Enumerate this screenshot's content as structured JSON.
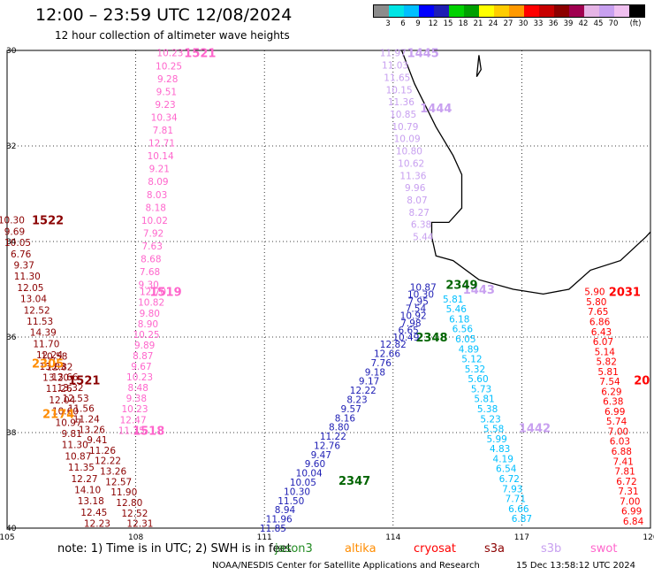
{
  "title": "12:00 – 23:59 UTC 12/08/2024",
  "subtitle": "12 hour collection of altimeter wave heights",
  "colorbar": {
    "colors": [
      "#8c8c8c",
      "#00e5e5",
      "#00bfff",
      "#0000ff",
      "#1e1eb4",
      "#00d200",
      "#00a000",
      "#ffff00",
      "#ffcc00",
      "#ff9900",
      "#ff0000",
      "#c80000",
      "#8c0000",
      "#a00050",
      "#e6b4e6",
      "#c8a0f0",
      "#f0c0f0",
      "#000000"
    ],
    "tick_labels": [
      "3",
      "6",
      "9",
      "12",
      "15",
      "18",
      "21",
      "24",
      "27",
      "30",
      "33",
      "36",
      "39",
      "42",
      "45",
      "70",
      "(ft)"
    ]
  },
  "map": {
    "lon_range": [
      105,
      120
    ],
    "lat_range": [
      -40,
      -30
    ],
    "x_ticks": [
      "105",
      "108",
      "111",
      "114",
      "117",
      "120"
    ],
    "y_ticks": [
      "30",
      "32",
      "34",
      "36",
      "38",
      "40"
    ],
    "coast_color": "#000000",
    "tracks": [
      {
        "label": "1521",
        "color": "#ff66cc",
        "label_pos": [
          109.5,
          -30.05
        ],
        "start": [
          108.8,
          -30.05
        ],
        "end": [
          108.3,
          -34.9
        ],
        "values": [
          "10.23",
          "10.25",
          "9.28",
          "9.51",
          "9.23",
          "10.34",
          "7.81",
          "12.71",
          "10.14",
          "9.21",
          "8.09",
          "8.03",
          "8.18",
          "10.02",
          "7.92",
          "7.63",
          "8.68",
          "7.68",
          "9.30"
        ]
      },
      {
        "label": "1519",
        "color": "#ff66cc",
        "label_pos": [
          108.7,
          -35.05
        ],
        "start": [
          108.4,
          -35.05
        ],
        "end": [
          107.9,
          -37.95
        ],
        "values": [
          "12.70",
          "10.82",
          "9.80",
          "8.90",
          "10.25",
          "9.89",
          "8.87",
          "9.67",
          "10.23",
          "8.48",
          "9.38",
          "10.23",
          "12.47",
          "11.75"
        ]
      },
      {
        "label": "1518",
        "color": "#ff66cc",
        "label_pos": [
          108.3,
          -37.95
        ],
        "start": null,
        "end": null,
        "values": []
      },
      {
        "label": "1522",
        "color": "#8b0000",
        "label_pos": [
          105.95,
          -33.55
        ],
        "start": [
          105.1,
          -33.55
        ],
        "end": [
          107.1,
          -39.9
        ],
        "values": [
          "10.30",
          "9.69",
          "10.05",
          "6.76",
          "9.37",
          "11.30",
          "12.05",
          "13.04",
          "12.52",
          "11.53",
          "14.39",
          "11.70",
          "12.24",
          "13.03",
          "13.20",
          "11.26",
          "12.04",
          "10.60",
          "10.97",
          "9.81",
          "11.30",
          "10.87",
          "11.35",
          "12.27",
          "14.10",
          "13.18",
          "12.45",
          "12.23"
        ]
      },
      {
        "label": "1521",
        "color": "#8b0000",
        "label_pos": [
          106.8,
          -36.9
        ],
        "start": [
          106.1,
          -36.4
        ],
        "end": [
          108.1,
          -39.9
        ],
        "values": [
          "10.58",
          "12.82",
          "13.66",
          "13.32",
          "12.53",
          "11.56",
          "11.24",
          "13.26",
          "9.41",
          "11.26",
          "12.22",
          "13.26",
          "12.57",
          "11.90",
          "12.80",
          "12.52",
          "12.31"
        ]
      },
      {
        "label": "2305",
        "color": "#ff8c00",
        "label_pos": [
          105.95,
          -36.55
        ],
        "start": null,
        "end": null,
        "values": []
      },
      {
        "label": "2174",
        "color": "#ff8c00",
        "label_pos": [
          106.2,
          -37.6
        ],
        "start": null,
        "end": null,
        "values": []
      },
      {
        "label": "1445",
        "color": "#c8a0f0",
        "label_pos": [
          114.7,
          -30.05
        ],
        "start": [
          114.0,
          -30.05
        ],
        "end": [
          114.7,
          -33.9
        ],
        "values": [
          "11.97",
          "11.03",
          "11.65",
          "10.15",
          "11.36",
          "10.85",
          "10.79",
          "10.09",
          "10.80",
          "10.62",
          "11.36",
          "9.96",
          "8.07",
          "8.27",
          "6.38",
          "5.44"
        ]
      },
      {
        "label": "1444",
        "color": "#c8a0f0",
        "label_pos": [
          115.0,
          -31.2
        ],
        "start": null,
        "end": null,
        "values": []
      },
      {
        "label": "1443",
        "color": "#c8a0f0",
        "label_pos": [
          116.0,
          -35.0
        ],
        "start": null,
        "end": null,
        "values": []
      },
      {
        "label": "1442",
        "color": "#c8a0f0",
        "label_pos": [
          117.3,
          -37.9
        ],
        "start": null,
        "end": null,
        "values": []
      },
      {
        "label": "2349",
        "color": "#006400",
        "label_pos": [
          115.6,
          -34.9
        ],
        "start": null,
        "end": null,
        "values": []
      },
      {
        "label": "2348",
        "color": "#006400",
        "label_pos": [
          114.9,
          -36.0
        ],
        "start": null,
        "end": null,
        "values": []
      },
      {
        "label": "2347",
        "color": "#006400",
        "label_pos": [
          113.1,
          -39.0
        ],
        "start": null,
        "end": null,
        "values": []
      },
      {
        "label": "",
        "color": "#1e1eb4",
        "label_pos": null,
        "start": [
          114.7,
          -34.95
        ],
        "end": [
          114.3,
          -36.0
        ],
        "values": [
          "10.87",
          "10.30",
          "7.95",
          "7.54",
          "10.92",
          "7.98",
          "6.65",
          "10.49"
        ]
      },
      {
        "label": "",
        "color": "#00bfff",
        "label_pos": null,
        "start": [
          115.4,
          -35.2
        ],
        "end": [
          117.0,
          -39.8
        ],
        "values": [
          "5.81",
          "5.46",
          "6.18",
          "6.56",
          "6.05",
          "4.89",
          "5.12",
          "5.32",
          "5.60",
          "5.73",
          "5.81",
          "5.38",
          "5.23",
          "5.58",
          "5.99",
          "4.83",
          "4.19",
          "6.54",
          "6.72",
          "7.93",
          "7.71",
          "6.66",
          "6.87"
        ]
      },
      {
        "label": "",
        "color": "#1e1eb4",
        "label_pos": null,
        "start": [
          114.0,
          -36.15
        ],
        "end": [
          111.2,
          -40.0
        ],
        "values": [
          "12.82",
          "12.66",
          "7.76",
          "9.18",
          "9.17",
          "12.22",
          "8.23",
          "9.57",
          "8.16",
          "8.80",
          "11.22",
          "12.76",
          "9.47",
          "9.60",
          "10.04",
          "10.05",
          "10.30",
          "11.50",
          "8.94",
          "11.96",
          "11.85"
        ]
      },
      {
        "label": "2031",
        "color": "#ff0000",
        "label_pos": [
          119.4,
          -35.05
        ],
        "start": [
          118.7,
          -35.05
        ],
        "end": [
          119.6,
          -39.85
        ],
        "values": [
          "5.90",
          "5.80",
          "7.65",
          "6.86",
          "6.43",
          "6.07",
          "5.14",
          "5.82",
          "5.81",
          "7.54",
          "6.29",
          "6.38",
          "6.99",
          "5.74",
          "7.00",
          "6.03",
          "6.88",
          "7.41",
          "7.81",
          "6.72",
          "7.31",
          "7.00",
          "6.99",
          "6.84"
        ]
      },
      {
        "label": "20",
        "color": "#ff0000",
        "label_pos": [
          119.8,
          -36.9
        ],
        "start": null,
        "end": null,
        "values": []
      }
    ],
    "coast_lon_lat": [
      [
        114.2,
        -30.0
      ],
      [
        114.5,
        -30.7
      ],
      [
        115.0,
        -31.6
      ],
      [
        115.4,
        -32.2
      ],
      [
        115.6,
        -32.6
      ],
      [
        115.6,
        -33.3
      ],
      [
        115.3,
        -33.6
      ],
      [
        114.9,
        -33.6
      ],
      [
        114.9,
        -33.9
      ],
      [
        115.0,
        -34.3
      ],
      [
        115.4,
        -34.4
      ],
      [
        116.0,
        -34.8
      ],
      [
        116.8,
        -35.0
      ],
      [
        117.5,
        -35.1
      ],
      [
        118.1,
        -35.0
      ],
      [
        118.6,
        -34.6
      ],
      [
        119.3,
        -34.4
      ],
      [
        119.9,
        -33.9
      ],
      [
        120.0,
        -33.8
      ]
    ],
    "island_lon_lat": [
      [
        116.0,
        -30.1
      ],
      [
        116.05,
        -30.4
      ],
      [
        115.95,
        -30.55
      ],
      [
        116.0,
        -30.1
      ]
    ]
  },
  "note": "note:  1) Time is in UTC;  2) SWH is in feet",
  "legend": [
    {
      "name": "jason3",
      "color": "#228b22"
    },
    {
      "name": "altika",
      "color": "#ff8c00"
    },
    {
      "name": "cryosat",
      "color": "#ff0000"
    },
    {
      "name": "s3a",
      "color": "#8b0000"
    },
    {
      "name": "s3b",
      "color": "#c8a0f0"
    },
    {
      "name": "swot",
      "color": "#ff66cc"
    }
  ],
  "credit": "NOAA/NESDIS Center for Satellite Applications and Research",
  "timestamp": "15 Dec 13:58:12 UTC 2024"
}
